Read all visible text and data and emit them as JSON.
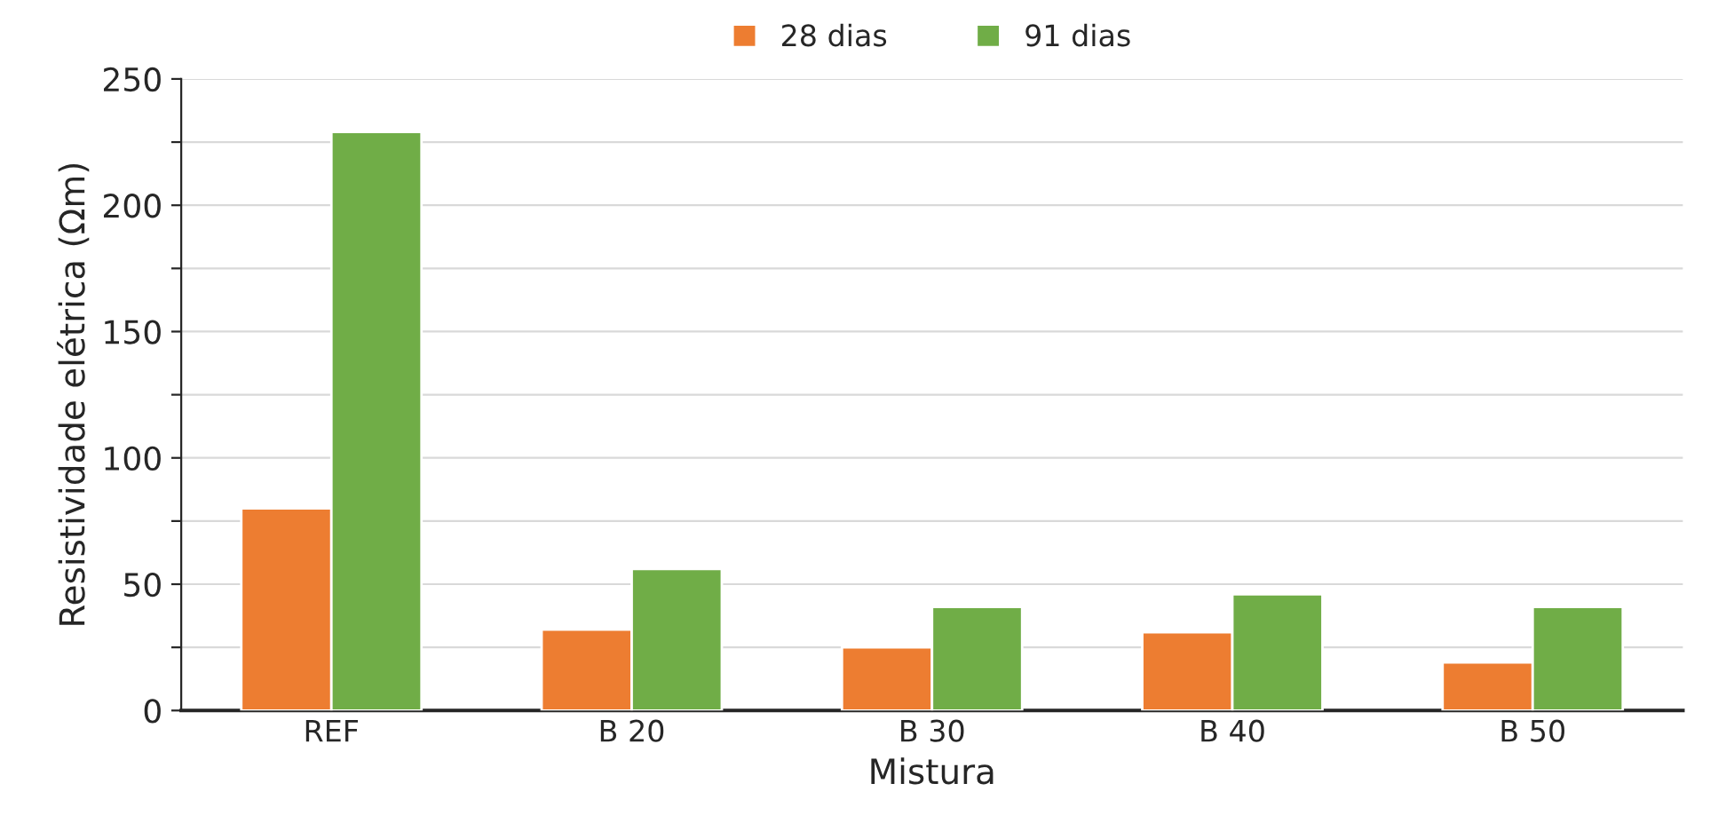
{
  "chart_data": {
    "type": "bar",
    "xlabel": "Mistura",
    "ylabel": "Resistividade elétrica (Ωm)",
    "categories": [
      "REF",
      "B 20",
      "B 30",
      "B 40",
      "B 50"
    ],
    "series": [
      {
        "name": "28 dias",
        "color": "#ed7d31",
        "values": [
          80,
          32,
          25,
          31,
          19
        ]
      },
      {
        "name": "91 dias",
        "color": "#70ad47",
        "values": [
          229,
          56,
          41,
          46,
          41
        ]
      }
    ],
    "ylim": [
      0,
      250
    ],
    "yticks": [
      0,
      {
        "value": 25,
        "label": null
      },
      50,
      {
        "value": 75,
        "label": null
      },
      100,
      {
        "value": 125,
        "label": null
      },
      150,
      {
        "value": 175,
        "label": null
      },
      200,
      {
        "value": 225,
        "label": null
      },
      250
    ],
    "grid": "y",
    "legend": "top"
  }
}
